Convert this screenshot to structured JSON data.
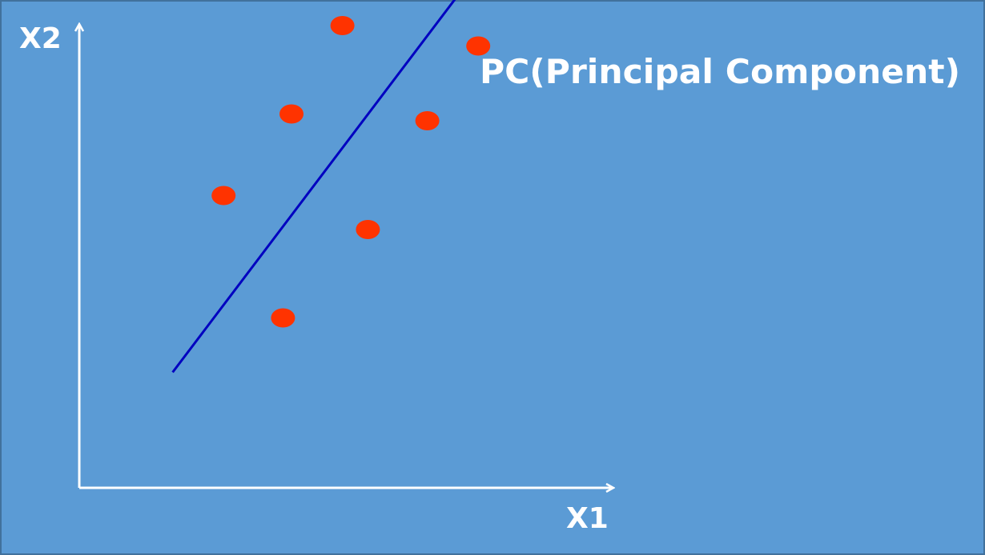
{
  "diagram": {
    "x_axis_label": "X1",
    "y_axis_label": "X2",
    "pc_label": "PC(Principal Component)"
  },
  "colors": {
    "background": "#5b9bd5",
    "border": "#41719c",
    "axis": "#ffffff",
    "pc_arrow": "#0000c0",
    "points": "#ff3300",
    "text": "#ffffff"
  },
  "chart_data": {
    "type": "scatter",
    "title": "",
    "xlabel": "X1",
    "ylabel": "X2",
    "xlim": [
      0,
      10
    ],
    "ylim": [
      0,
      10
    ],
    "points": [
      {
        "x": 1.7,
        "y": 4.3
      },
      {
        "x": 2.4,
        "y": 2.5
      },
      {
        "x": 2.5,
        "y": 5.5
      },
      {
        "x": 3.1,
        "y": 6.8
      },
      {
        "x": 3.4,
        "y": 3.8
      },
      {
        "x": 4.1,
        "y": 5.4
      },
      {
        "x": 4.7,
        "y": 6.5
      }
    ],
    "principal_component": {
      "from": {
        "x": 1.1,
        "y": 1.7
      },
      "to": {
        "x": 5.1,
        "y": 8.3
      }
    }
  }
}
